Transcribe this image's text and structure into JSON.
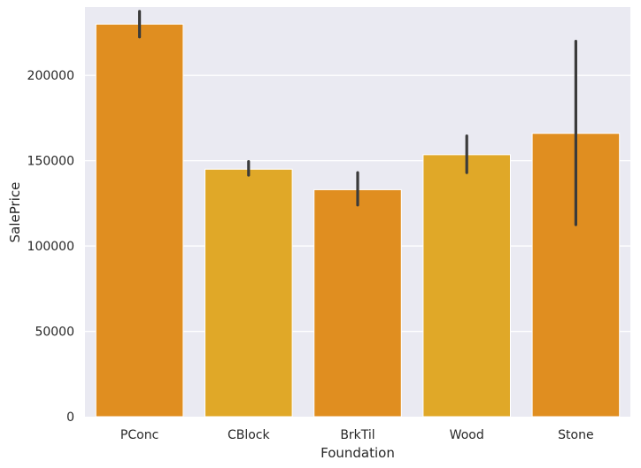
{
  "chart_data": {
    "type": "bar",
    "xlabel": "Foundation",
    "ylabel": "SalePrice",
    "ylim": [
      0,
      240000
    ],
    "yticks": [
      0,
      50000,
      100000,
      150000,
      200000
    ],
    "ytick_labels": [
      "0",
      "50000",
      "100000",
      "150000",
      "200000"
    ],
    "grid": true,
    "categories": [
      "PConc",
      "CBlock",
      "BrkTil",
      "Wood",
      "Stone"
    ],
    "values": [
      230000,
      145000,
      133000,
      153500,
      166000
    ],
    "error_bars": [
      {
        "low": 222500,
        "high": 237500
      },
      {
        "low": 141500,
        "high": 149500
      },
      {
        "low": 124000,
        "high": 143000
      },
      {
        "low": 143000,
        "high": 164500
      },
      {
        "low": 112500,
        "high": 220000
      }
    ],
    "bar_colors": [
      "#e08e20",
      "#e0a828",
      "#e08e20",
      "#e0a828",
      "#e08e20"
    ],
    "error_color": "#3b3b3b",
    "background_color": "#eaeaf2",
    "grid_color": "#ffffff"
  }
}
